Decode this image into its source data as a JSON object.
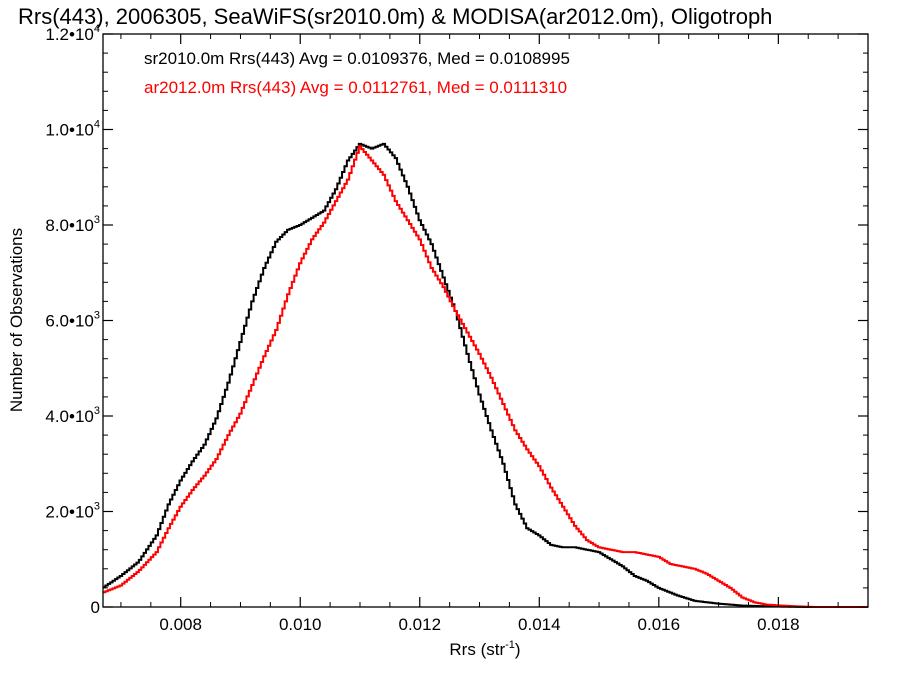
{
  "chart_data": {
    "type": "line",
    "title": "Rrs(443), 2006305, SeaWiFS(sr2010.0m) & MODISA(ar2012.0m), Oligotroph",
    "xlabel_main": "Rrs (str",
    "xlabel_sup": "-1",
    "xlabel_end": ")",
    "ylabel": "Number of Observations",
    "xlim": [
      0.0067,
      0.0195
    ],
    "ylim": [
      0,
      12000
    ],
    "x_ticks": [
      {
        "value": 0.008,
        "label": "0.008"
      },
      {
        "value": 0.01,
        "label": "0.010"
      },
      {
        "value": 0.012,
        "label": "0.012"
      },
      {
        "value": 0.014,
        "label": "0.014"
      },
      {
        "value": 0.016,
        "label": "0.016"
      },
      {
        "value": 0.018,
        "label": "0.018"
      }
    ],
    "y_ticks": [
      {
        "value": 0,
        "base": "0",
        "exp": ""
      },
      {
        "value": 2000,
        "base": "2.0•10",
        "exp": "3"
      },
      {
        "value": 4000,
        "base": "4.0•10",
        "exp": "3"
      },
      {
        "value": 6000,
        "base": "6.0•10",
        "exp": "3"
      },
      {
        "value": 8000,
        "base": "8.0•10",
        "exp": "3"
      },
      {
        "value": 10000,
        "base": "1.0•10",
        "exp": "4"
      },
      {
        "value": 12000,
        "base": "1.2•10",
        "exp": "4"
      }
    ],
    "x_minor_step": 0.0005,
    "y_minor_step": 400,
    "legend_placement": "top-left",
    "legend": [
      {
        "text": "sr2010.0m Rrs(443) Avg = 0.0109376, Med = 0.0108995",
        "color": "#000000"
      },
      {
        "text": "ar2012.0m Rrs(443) Avg = 0.0112761, Med = 0.0111310",
        "color": "#ff0000"
      }
    ],
    "series": [
      {
        "color": "#000000",
        "step_style": "histogram",
        "points": [
          [
            0.0067,
            400
          ],
          [
            0.007,
            650
          ],
          [
            0.0073,
            950
          ],
          [
            0.0076,
            1500
          ],
          [
            0.0078,
            2150
          ],
          [
            0.008,
            2650
          ],
          [
            0.0082,
            3050
          ],
          [
            0.0084,
            3400
          ],
          [
            0.0086,
            3950
          ],
          [
            0.0088,
            4700
          ],
          [
            0.009,
            5550
          ],
          [
            0.0092,
            6400
          ],
          [
            0.0094,
            7100
          ],
          [
            0.0096,
            7650
          ],
          [
            0.0098,
            7900
          ],
          [
            0.01,
            8000
          ],
          [
            0.0102,
            8150
          ],
          [
            0.0104,
            8300
          ],
          [
            0.0106,
            8750
          ],
          [
            0.0108,
            9350
          ],
          [
            0.011,
            9700
          ],
          [
            0.0112,
            9600
          ],
          [
            0.0114,
            9700
          ],
          [
            0.0116,
            9400
          ],
          [
            0.0118,
            8800
          ],
          [
            0.012,
            8100
          ],
          [
            0.0122,
            7600
          ],
          [
            0.0124,
            6900
          ],
          [
            0.0126,
            6200
          ],
          [
            0.0128,
            5300
          ],
          [
            0.013,
            4450
          ],
          [
            0.0132,
            3700
          ],
          [
            0.0134,
            3000
          ],
          [
            0.0136,
            2150
          ],
          [
            0.0138,
            1650
          ],
          [
            0.014,
            1500
          ],
          [
            0.0142,
            1300
          ],
          [
            0.0144,
            1250
          ],
          [
            0.0146,
            1250
          ],
          [
            0.0148,
            1200
          ],
          [
            0.015,
            1150
          ],
          [
            0.0152,
            1000
          ],
          [
            0.0154,
            850
          ],
          [
            0.0156,
            650
          ],
          [
            0.0158,
            550
          ],
          [
            0.016,
            400
          ],
          [
            0.0163,
            250
          ],
          [
            0.0166,
            130
          ],
          [
            0.017,
            70
          ],
          [
            0.0174,
            30
          ],
          [
            0.0178,
            15
          ],
          [
            0.0185,
            0
          ],
          [
            0.0195,
            0
          ]
        ]
      },
      {
        "color": "#ff0000",
        "step_style": "histogram",
        "points": [
          [
            0.0067,
            300
          ],
          [
            0.007,
            450
          ],
          [
            0.0073,
            750
          ],
          [
            0.0076,
            1150
          ],
          [
            0.0078,
            1650
          ],
          [
            0.008,
            2100
          ],
          [
            0.0082,
            2450
          ],
          [
            0.0084,
            2750
          ],
          [
            0.0086,
            3100
          ],
          [
            0.0088,
            3600
          ],
          [
            0.009,
            4050
          ],
          [
            0.0092,
            4650
          ],
          [
            0.0094,
            5250
          ],
          [
            0.0096,
            5800
          ],
          [
            0.0098,
            6550
          ],
          [
            0.01,
            7200
          ],
          [
            0.0102,
            7700
          ],
          [
            0.0104,
            8050
          ],
          [
            0.0106,
            8500
          ],
          [
            0.0108,
            8950
          ],
          [
            0.011,
            9650
          ],
          [
            0.0112,
            9350
          ],
          [
            0.0114,
            9050
          ],
          [
            0.0116,
            8500
          ],
          [
            0.0118,
            8100
          ],
          [
            0.012,
            7700
          ],
          [
            0.0122,
            7100
          ],
          [
            0.0124,
            6700
          ],
          [
            0.0126,
            6200
          ],
          [
            0.0128,
            5750
          ],
          [
            0.013,
            5300
          ],
          [
            0.0132,
            4800
          ],
          [
            0.0134,
            4250
          ],
          [
            0.0136,
            3700
          ],
          [
            0.0138,
            3300
          ],
          [
            0.014,
            2950
          ],
          [
            0.0142,
            2500
          ],
          [
            0.0144,
            2100
          ],
          [
            0.0146,
            1700
          ],
          [
            0.0148,
            1400
          ],
          [
            0.015,
            1250
          ],
          [
            0.0152,
            1200
          ],
          [
            0.0154,
            1150
          ],
          [
            0.0156,
            1150
          ],
          [
            0.0158,
            1100
          ],
          [
            0.016,
            1050
          ],
          [
            0.0162,
            900
          ],
          [
            0.0164,
            850
          ],
          [
            0.0166,
            800
          ],
          [
            0.0168,
            700
          ],
          [
            0.017,
            550
          ],
          [
            0.0172,
            400
          ],
          [
            0.0174,
            200
          ],
          [
            0.0176,
            100
          ],
          [
            0.0178,
            50
          ],
          [
            0.0182,
            20
          ],
          [
            0.0186,
            0
          ],
          [
            0.0195,
            0
          ]
        ]
      }
    ]
  }
}
